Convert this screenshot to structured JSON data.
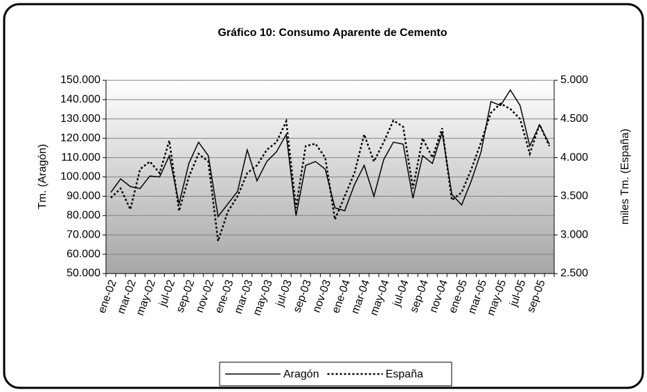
{
  "chart_data": {
    "type": "line",
    "title": "Gráfico 10: Consumo Aparente de Cemento",
    "ylabel": "Tm. (Aragón)",
    "y2label": "miles Tm. (España)",
    "categories": [
      "ene-02",
      null,
      "mar-02",
      null,
      "may-02",
      null,
      "jul-02",
      null,
      "sep-02",
      null,
      "nov-02",
      null,
      "ene-03",
      null,
      "mar-03",
      null,
      "may-03",
      null,
      "jul-03",
      null,
      "sep-03",
      null,
      "nov-03",
      null,
      "ene-04",
      null,
      "mar-04",
      null,
      "may-04",
      null,
      "jul-04",
      null,
      "sep-04",
      null,
      "nov-04",
      null,
      "ene-05",
      null,
      "mar-05",
      null,
      "may-05",
      null,
      "jul-05",
      null,
      "sep-05",
      null
    ],
    "series": [
      {
        "name": "Aragón",
        "color": "#000000",
        "dashed": false,
        "values": [
          92000,
          99000,
          95000,
          94000,
          100500,
          100000,
          111000,
          86000,
          107000,
          118000,
          111000,
          79500,
          86000,
          92500,
          114000,
          98000,
          108000,
          113000,
          122000,
          80000,
          106000,
          108000,
          104000,
          84000,
          82500,
          96000,
          106000,
          90000,
          109000,
          118000,
          117000,
          89000,
          111000,
          107000,
          123000,
          91000,
          85500,
          98000,
          113000,
          139000,
          137000,
          145000,
          137000,
          116000,
          127000,
          117000
        ]
      },
      {
        "name": "España",
        "color": "#000000",
        "dashed": true,
        "axis": "y2",
        "values": [
          3480,
          3600,
          3330,
          3850,
          3950,
          3800,
          4220,
          3310,
          3750,
          4050,
          3950,
          2920,
          3300,
          3500,
          3800,
          3900,
          4100,
          4200,
          4470,
          3350,
          4150,
          4180,
          4000,
          3200,
          3500,
          3800,
          4300,
          3950,
          4200,
          4480,
          4400,
          3600,
          4250,
          4000,
          4380,
          3450,
          3550,
          3850,
          4200,
          4580,
          4700,
          4630,
          4500,
          4050,
          4430,
          4150
        ]
      }
    ],
    "ylim": [
      50000,
      150000
    ],
    "yticks": [
      {
        "value": 50000,
        "label": "50.000"
      },
      {
        "value": 60000,
        "label": "60.000"
      },
      {
        "value": 70000,
        "label": "70.000"
      },
      {
        "value": 80000,
        "label": "80.000"
      },
      {
        "value": 90000,
        "label": "90.000"
      },
      {
        "value": 100000,
        "label": "100.000"
      },
      {
        "value": 110000,
        "label": "110.000"
      },
      {
        "value": 120000,
        "label": "120.000"
      },
      {
        "value": 130000,
        "label": "130.000"
      },
      {
        "value": 140000,
        "label": "140.000"
      },
      {
        "value": 150000,
        "label": "150.000"
      }
    ],
    "y2lim": [
      2500,
      5000
    ],
    "y2ticks": [
      {
        "value": 2500,
        "label": "2.500"
      },
      {
        "value": 3000,
        "label": "3.000"
      },
      {
        "value": 3500,
        "label": "3.500"
      },
      {
        "value": 4000,
        "label": "4.000"
      },
      {
        "value": 4500,
        "label": "4.500"
      },
      {
        "value": 5000,
        "label": "5.000"
      }
    ],
    "grid": true,
    "legend": "bottom"
  }
}
